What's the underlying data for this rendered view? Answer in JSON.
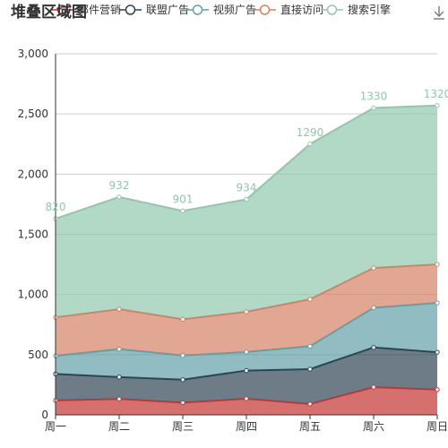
{
  "chart_data": {
    "type": "area",
    "stacked": true,
    "title": "堆叠区域图",
    "categories": [
      "周一",
      "周二",
      "周三",
      "周四",
      "周五",
      "周六",
      "周日"
    ],
    "ylim": [
      0,
      3000
    ],
    "yticks": [
      "0",
      "500",
      "1,000",
      "1,500",
      "2,000",
      "2,500",
      "3,000"
    ],
    "grid": true,
    "legend_position": "top",
    "series": [
      {
        "name": "邮件营销",
        "values": [
          120,
          132,
          101,
          134,
          90,
          230,
          210
        ],
        "color": "#c23531"
      },
      {
        "name": "联盟广告",
        "values": [
          220,
          182,
          191,
          234,
          290,
          330,
          310
        ],
        "color": "#2f4554"
      },
      {
        "name": "视频广告",
        "values": [
          150,
          232,
          201,
          154,
          190,
          330,
          410
        ],
        "color": "#61a0a8"
      },
      {
        "name": "直接访问",
        "values": [
          320,
          332,
          301,
          334,
          390,
          330,
          320
        ],
        "color": "#d48265"
      },
      {
        "name": "搜索引擎",
        "values": [
          820,
          932,
          901,
          934,
          1290,
          1330,
          1320
        ],
        "color": "#91c7ae"
      }
    ]
  },
  "toolbox": {
    "icon": "download-icon"
  }
}
